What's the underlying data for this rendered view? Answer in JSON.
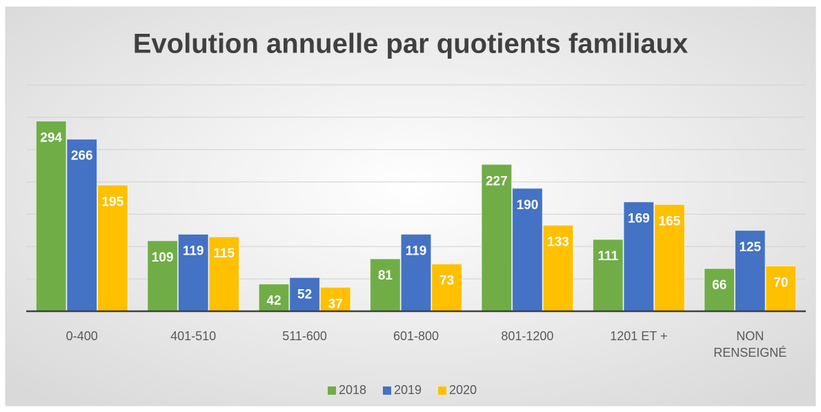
{
  "chart_data": {
    "type": "bar",
    "title": "Evolution annuelle par quotients familiaux",
    "categories": [
      "0-400",
      "401-510",
      "511-600",
      "601-800",
      "801-1200",
      "1201 ET +",
      "NON RENSEIGNÉ"
    ],
    "series": [
      {
        "name": "2018",
        "color": "#70ad47",
        "values": [
          294,
          109,
          42,
          81,
          227,
          111,
          66
        ]
      },
      {
        "name": "2019",
        "color": "#4472c4",
        "values": [
          266,
          119,
          52,
          119,
          190,
          169,
          125
        ]
      },
      {
        "name": "2020",
        "color": "#ffc000",
        "values": [
          195,
          115,
          37,
          73,
          133,
          165,
          70
        ]
      }
    ],
    "ylim": [
      0,
      350
    ],
    "yticks": [
      0,
      50,
      100,
      150,
      200,
      250,
      300,
      350
    ],
    "grid": true,
    "legend": "bottom"
  }
}
